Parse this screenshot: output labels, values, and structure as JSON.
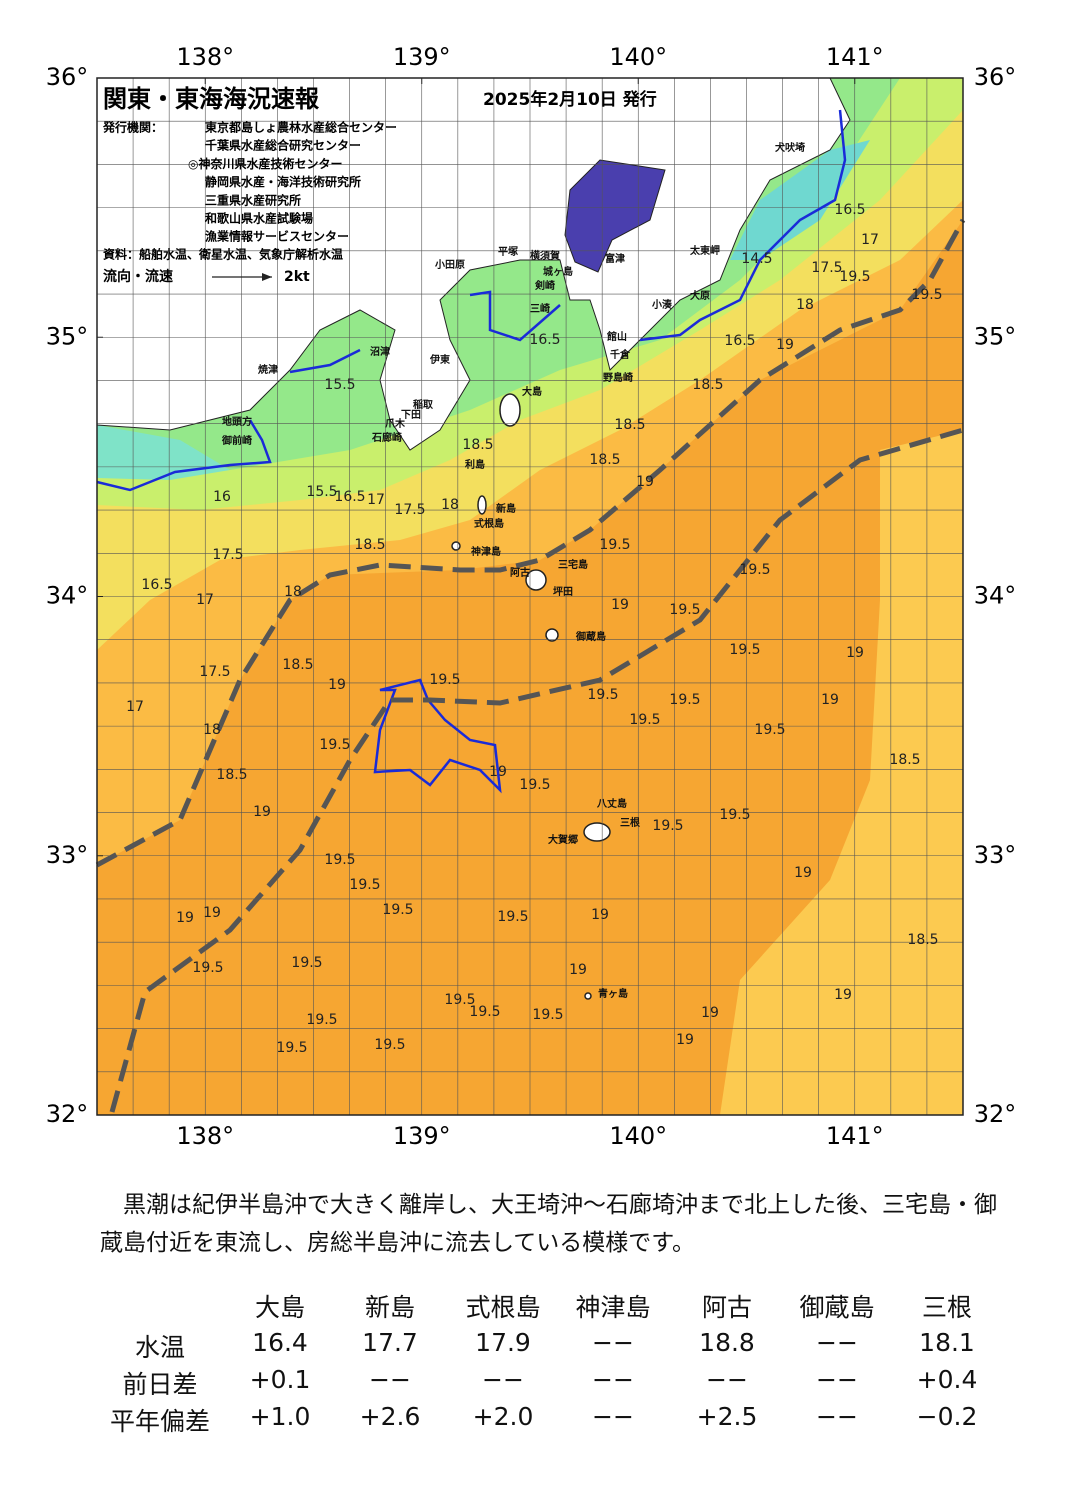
{
  "map": {
    "title": "関東・東海海況速報",
    "date": "2025年2月10日 発行",
    "issuer_label": "発行機関：",
    "issuers": [
      "東京都島しょ農林水産総合センター",
      "千葉県水産総合研究センター",
      "◎神奈川県水産技術センター",
      "静岡県水産・海洋技術研究所",
      "三重県水産研究所",
      "和歌山県水産試験場",
      "漁業情報サービスセンター"
    ],
    "source": "資料：船舶水温、衛星水温、気象庁解析水温",
    "legend_label": "流向・流速",
    "legend_speed": "2kt",
    "xlim": [
      137.5,
      141.5
    ],
    "ylim": [
      32,
      36
    ],
    "xticks": [
      {
        "value": 138,
        "label": "138°"
      },
      {
        "value": 139,
        "label": "139°"
      },
      {
        "value": 140,
        "label": "140°"
      },
      {
        "value": 141,
        "label": "141°"
      }
    ],
    "yticks": [
      {
        "value": 32,
        "label": "32°"
      },
      {
        "value": 33,
        "label": "33°"
      },
      {
        "value": 34,
        "label": "34°"
      },
      {
        "value": 35,
        "label": "35°"
      },
      {
        "value": 36,
        "label": "36°"
      }
    ],
    "place_names": [
      "小田原",
      "平塚",
      "横須賀",
      "富津",
      "城ヶ島",
      "剣崎",
      "三崎",
      "館山",
      "千倉",
      "野島崎",
      "大原",
      "小湊",
      "太東岬",
      "犬吠埼",
      "沼津",
      "伊東",
      "焼津",
      "稲取",
      "下田",
      "爪木",
      "石廊崎",
      "地頭方",
      "御前崎",
      "大島",
      "利島",
      "新島",
      "式根島",
      "神津島",
      "三宅島",
      "阿古",
      "坪田",
      "御蔵島",
      "八丈島",
      "三根",
      "大賀郷",
      "青ヶ島"
    ],
    "contour_labels": [
      "15.5",
      "15.5",
      "16",
      "16.5",
      "17",
      "17.5",
      "18",
      "18.5",
      "17.5",
      "16.5",
      "17",
      "18",
      "18.5",
      "19",
      "17.5",
      "17",
      "18",
      "18.5",
      "19",
      "19.5",
      "19.5",
      "19.5",
      "19.5",
      "19.5",
      "19",
      "19",
      "19.5",
      "19.5",
      "19.5",
      "19.5",
      "19.5",
      "19.5",
      "19.5",
      "19.5",
      "19.5",
      "19.5",
      "19",
      "19.5",
      "19.5",
      "19.5",
      "19.5",
      "19.5",
      "19.5",
      "19",
      "19",
      "19",
      "19",
      "19",
      "18.5",
      "19",
      "18.5",
      "19",
      "19",
      "19.5",
      "19.5",
      "19",
      "19.5",
      "19.5",
      "18.5",
      "19",
      "18.5",
      "18",
      "17.5",
      "19.5",
      "17",
      "16.5",
      "14.5",
      "16.5",
      "19",
      "18.5",
      "18.5",
      "19.5",
      "16.5"
    ]
  },
  "description": "黒潮は紀伊半島沖で大きく離岸し、大王埼沖～石廊埼沖まで北上した後、三宅島・御蔵島付近を東流し、房総半島沖に流去している模様です。",
  "table": {
    "columns": [
      "大島",
      "新島",
      "式根島",
      "神津島",
      "阿古",
      "御蔵島",
      "三根"
    ],
    "rows": [
      {
        "label": "水温",
        "cells": [
          "16.4",
          "17.7",
          "17.9",
          "−−",
          "18.8",
          "−−",
          "18.1"
        ]
      },
      {
        "label": "前日差",
        "cells": [
          "+0.1",
          "−−",
          "−−",
          "−−",
          "−−",
          "−−",
          "+0.4"
        ]
      },
      {
        "label": "平年偏差",
        "cells": [
          "+1.0",
          "+2.6",
          "+2.0",
          "−−",
          "+2.5",
          "−−",
          "−0.2"
        ]
      }
    ]
  }
}
